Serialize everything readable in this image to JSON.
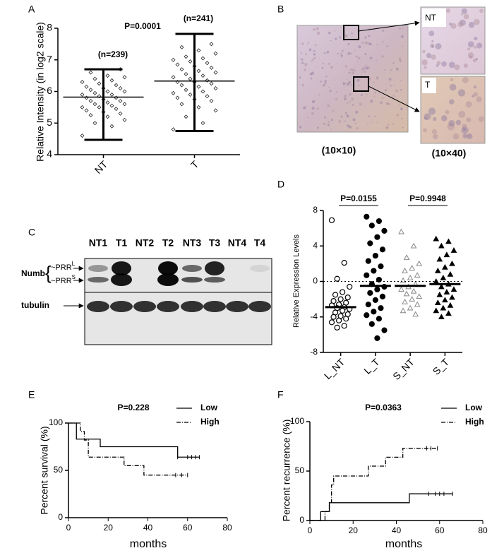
{
  "chart_data": [
    {
      "label": "A",
      "type": "dotplot",
      "ylabel": "Relative Intensity (in log2 scale)",
      "ylim": [
        4,
        8
      ],
      "yticks": [
        4,
        5,
        6,
        7,
        8
      ],
      "categories": [
        "NT",
        "T"
      ],
      "groups": [
        {
          "values": [
            4.6,
            4.9,
            5.0,
            5.1,
            5.2,
            5.25,
            5.3,
            5.35,
            5.4,
            5.45,
            5.5,
            5.5,
            5.55,
            5.6,
            5.6,
            5.65,
            5.7,
            5.7,
            5.75,
            5.8,
            5.8,
            5.85,
            5.9,
            5.9,
            5.95,
            6.0,
            6.0,
            6.05,
            6.1,
            6.1,
            6.15,
            6.2,
            6.25,
            6.3,
            6.35,
            6.4,
            6.45,
            6.5,
            6.6,
            6.7
          ],
          "mean": 5.82,
          "min": 4.47,
          "max": 6.7,
          "marker": "diamond",
          "filled": false,
          "color": "#222222"
        },
        {
          "values": [
            4.8,
            5.0,
            5.2,
            5.4,
            5.5,
            5.6,
            5.7,
            5.75,
            5.8,
            5.85,
            5.9,
            5.95,
            6.0,
            6.05,
            6.1,
            6.15,
            6.2,
            6.25,
            6.3,
            6.3,
            6.35,
            6.4,
            6.45,
            6.5,
            6.55,
            6.6,
            6.65,
            6.7,
            6.75,
            6.8,
            6.85,
            6.9,
            6.95,
            7.0,
            7.05,
            7.1,
            7.2,
            7.3,
            7.4,
            7.5
          ],
          "mean": 6.33,
          "min": 4.75,
          "max": 7.82,
          "marker": "diamond",
          "filled": false,
          "color": "#222222"
        }
      ],
      "annotations": [
        "P=0.0001",
        "(n=239)",
        "(n=241)"
      ]
    },
    {
      "label": "D",
      "type": "dotplot",
      "ylabel": "Relative Expression Levels",
      "ylim": [
        -8,
        8
      ],
      "yticks": [
        -8,
        -4,
        0,
        4,
        8
      ],
      "reference_line": 0,
      "categories": [
        "L_NT",
        "L_T",
        "S_NT",
        "S_T"
      ],
      "groups": [
        {
          "values": [
            6.9,
            2.1,
            0.3,
            -0.6,
            -1.2,
            -1.5,
            -1.8,
            -2.0,
            -2.2,
            -2.4,
            -2.6,
            -2.7,
            -2.9,
            -3.0,
            -3.1,
            -3.3,
            -3.5,
            -3.7,
            -3.9,
            -4.0,
            -4.2,
            -4.4,
            -4.6,
            -5.0,
            -5.2
          ],
          "median": -2.9,
          "marker": "circle",
          "filled": false,
          "color": "#000000"
        },
        {
          "values": [
            7.3,
            6.8,
            6.3,
            5.7,
            5.0,
            4.3,
            3.6,
            2.9,
            2.3,
            1.7,
            1.2,
            0.7,
            0.2,
            -0.3,
            -0.6,
            -0.9,
            -1.3,
            -1.7,
            -2.1,
            -2.6,
            -3.0,
            -3.4,
            -3.8,
            -4.2,
            -4.8,
            -5.5,
            -6.4
          ],
          "median": -0.5,
          "marker": "circle",
          "filled": true,
          "color": "#000000"
        },
        {
          "values": [
            5.6,
            4.0,
            2.7,
            2.0,
            1.5,
            1.2,
            0.7,
            0.4,
            0.1,
            -0.3,
            -0.6,
            -0.9,
            -1.1,
            -1.4,
            -1.7,
            -2.0,
            -2.3,
            -2.6,
            -3.0,
            -3.3,
            -3.7
          ],
          "median": -0.5,
          "marker": "triangle",
          "filled": false,
          "color": "#888888"
        },
        {
          "values": [
            4.8,
            4.5,
            4.0,
            3.5,
            3.0,
            2.5,
            2.0,
            1.6,
            1.2,
            0.8,
            0.4,
            0.0,
            -0.3,
            -0.6,
            -0.9,
            -1.2,
            -1.5,
            -1.8,
            -2.1,
            -2.4,
            -2.7,
            -3.0,
            -3.3,
            -3.6,
            -4.0
          ],
          "median": -0.3,
          "marker": "triangle",
          "filled": true,
          "color": "#000000"
        }
      ],
      "annotations": [
        "P=0.0155",
        "P=0.9948"
      ]
    },
    {
      "label": "E",
      "type": "step",
      "title": "P=0.228",
      "xlabel": "months",
      "ylabel": "Percent survival (%)",
      "xlim": [
        0,
        80
      ],
      "xticks": [
        0,
        20,
        40,
        60,
        80
      ],
      "ylim": [
        0,
        100
      ],
      "yticks": [
        0,
        50,
        100
      ],
      "legend": "upper right",
      "series": [
        {
          "name": "Low",
          "dash": false,
          "color": "#000000",
          "x": [
            0,
            4,
            4,
            16,
            16,
            55,
            55,
            66
          ],
          "values": [
            100,
            100,
            83,
            83,
            75,
            75,
            64,
            64
          ],
          "censored": [
            55,
            60,
            62,
            64,
            66
          ]
        },
        {
          "name": "High",
          "dash": true,
          "color": "#000000",
          "x": [
            0,
            6,
            6,
            8,
            8,
            10,
            10,
            28,
            28,
            38,
            38,
            60
          ],
          "values": [
            100,
            100,
            91,
            91,
            82,
            82,
            64,
            64,
            55,
            55,
            45,
            45
          ],
          "censored": [
            54,
            57,
            60
          ]
        }
      ]
    },
    {
      "label": "F",
      "type": "step",
      "title": "P=0.0363",
      "xlabel": "months",
      "ylabel": "Percent recurrence (%)",
      "xlim": [
        0,
        80
      ],
      "xticks": [
        0,
        20,
        40,
        60,
        80
      ],
      "ylim": [
        0,
        100
      ],
      "yticks": [
        0,
        50,
        100
      ],
      "legend": "upper right",
      "series": [
        {
          "name": "Low",
          "dash": false,
          "color": "#000000",
          "x": [
            0,
            5,
            5,
            9,
            9,
            46,
            46,
            66
          ],
          "values": [
            0,
            0,
            9,
            9,
            18,
            18,
            27,
            27
          ],
          "censored": [
            55,
            58,
            60,
            62,
            66
          ]
        },
        {
          "name": "High",
          "dash": true,
          "color": "#000000",
          "x": [
            0,
            7,
            7,
            9,
            9,
            10,
            10,
            11,
            11,
            27,
            27,
            35,
            35,
            43,
            43,
            59
          ],
          "values": [
            0,
            0,
            9,
            9,
            18,
            18,
            36,
            36,
            45,
            45,
            55,
            55,
            64,
            64,
            73,
            73
          ],
          "censored": [
            54,
            56,
            59
          ]
        }
      ]
    }
  ],
  "figure_b": {
    "label": "B",
    "insets": [
      "NT",
      "T"
    ],
    "captions": [
      "(10×10)",
      "(10×40)"
    ]
  },
  "figure_c": {
    "label": "C",
    "lanes": [
      "NT1",
      "T1",
      "NT2",
      "T2",
      "NT3",
      "T3",
      "NT4",
      "T4"
    ],
    "protein": "Numb",
    "isoforms": [
      {
        "name": "~PRR",
        "sup": "L"
      },
      {
        "name": "~PRR",
        "sup": "S"
      }
    ],
    "loading": "tubulin"
  }
}
